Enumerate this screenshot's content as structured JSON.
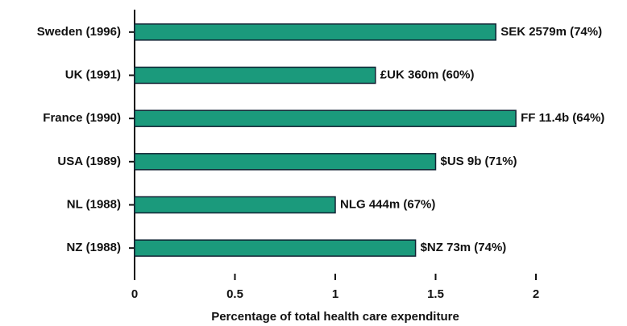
{
  "chart_data": {
    "type": "bar",
    "orientation": "horizontal",
    "categories": [
      "Sweden (1996)",
      "UK (1991)",
      "France (1990)",
      "USA (1989)",
      "NL (1988)",
      "NZ (1988)"
    ],
    "values": [
      1.8,
      1.2,
      1.9,
      1.5,
      1.0,
      1.4
    ],
    "annotations": [
      "SEK 2579m (74%)",
      "£UK 360m (60%)",
      "FF 11.4b (64%)",
      "$US 9b (71%)",
      "NLG 444m (67%)",
      "$NZ 73m (74%)"
    ],
    "color": "#1b9a7c",
    "xlabel": "Percentage of total health care expenditure",
    "xlim": [
      0,
      2
    ],
    "xticks": [
      0,
      0.5,
      1,
      1.5,
      2
    ],
    "grid": false
  }
}
